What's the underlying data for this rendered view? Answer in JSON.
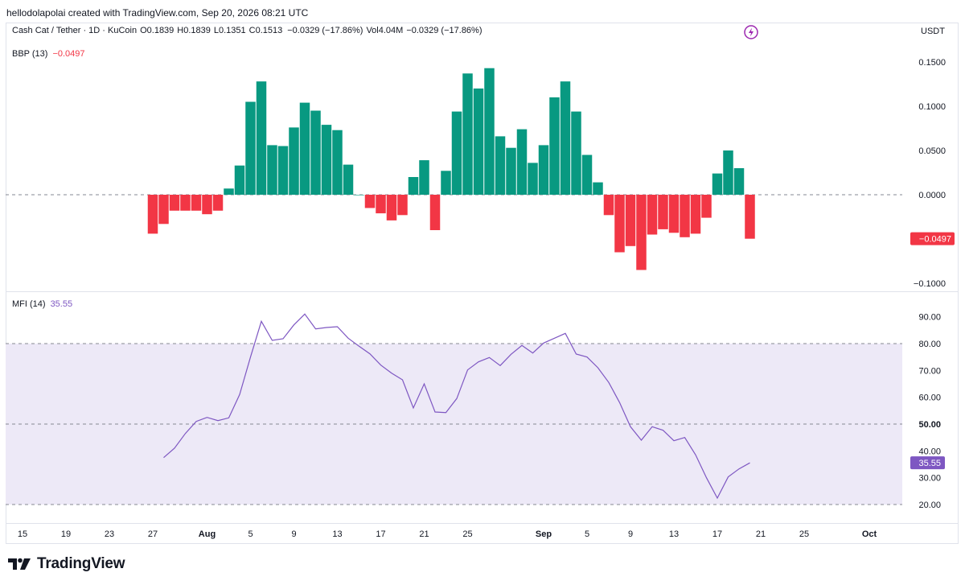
{
  "header": {
    "author_line": "hellodolapolai created with TradingView.com, Sep 20, 2026 08:21 UTC",
    "symbol": "Cash Cat / Tether · 1D · KuCoin",
    "open": "O0.1839",
    "high": "H0.1839",
    "low": "L0.1351",
    "close": "C0.1513",
    "change": "−0.0329 (−17.86%)",
    "volume": "Vol4.04M",
    "volume_change": "−0.0329 (−17.86%)",
    "currency": "USDT",
    "bolt_icon": "lightning-bolt-icon"
  },
  "brand": {
    "name": "TradingView",
    "logo_icon": "tradingview-logo-icon"
  },
  "colors": {
    "up": "#089981",
    "down": "#f23645",
    "mfi_line": "#7e57c2",
    "mfi_band": "#ede9f7",
    "grid": "#e0e3eb",
    "axis_text": "#131722"
  },
  "chart_data": [
    {
      "type": "bar",
      "title": "BBP (13)",
      "last_value_label": "−0.0497",
      "x_axis_ticks": [
        "15",
        "19",
        "23",
        "27",
        "Aug",
        "5",
        "9",
        "13",
        "17",
        "21",
        "25",
        "Sep",
        "5",
        "9",
        "13",
        "17",
        "21",
        "25",
        "Oct"
      ],
      "y_ticks": [
        "0.1500",
        "0.1000",
        "0.0500",
        "0.0000",
        "−0.1000"
      ],
      "ylim": [
        -0.1,
        0.16
      ],
      "zero_line": true,
      "categories": [
        "Jul 27",
        "Jul 28",
        "Jul 29",
        "Jul 30",
        "Jul 31",
        "Aug 1",
        "Aug 2",
        "Aug 3",
        "Aug 4",
        "Aug 5",
        "Aug 6",
        "Aug 7",
        "Aug 8",
        "Aug 9",
        "Aug 10",
        "Aug 11",
        "Aug 12",
        "Aug 13",
        "Aug 14",
        "Aug 15",
        "Aug 16",
        "Aug 17",
        "Aug 18",
        "Aug 19",
        "Aug 20",
        "Aug 21",
        "Aug 22",
        "Aug 23",
        "Aug 24",
        "Aug 25",
        "Aug 26",
        "Aug 27",
        "Aug 28",
        "Aug 29",
        "Aug 30",
        "Aug 31",
        "Sep 1",
        "Sep 2",
        "Sep 3",
        "Sep 4",
        "Sep 5",
        "Sep 6",
        "Sep 7",
        "Sep 8",
        "Sep 9",
        "Sep 10",
        "Sep 11",
        "Sep 12",
        "Sep 13",
        "Sep 14",
        "Sep 15",
        "Sep 16",
        "Sep 17",
        "Sep 18",
        "Sep 19",
        "Sep 20"
      ],
      "values": [
        -0.044,
        -0.033,
        -0.018,
        -0.018,
        -0.018,
        -0.022,
        -0.018,
        0.007,
        0.033,
        0.105,
        0.128,
        0.056,
        0.055,
        0.076,
        0.104,
        0.095,
        0.079,
        0.073,
        0.034,
        0.0,
        -0.015,
        -0.021,
        -0.029,
        -0.023,
        0.02,
        0.039,
        -0.04,
        0.027,
        0.094,
        0.137,
        0.12,
        0.143,
        0.066,
        0.053,
        0.074,
        0.036,
        0.056,
        0.11,
        0.128,
        0.094,
        0.045,
        0.014,
        -0.023,
        -0.065,
        -0.058,
        -0.085,
        -0.045,
        -0.039,
        -0.043,
        -0.048,
        -0.044,
        -0.026,
        0.024,
        0.05,
        0.03,
        -0.0497
      ]
    },
    {
      "type": "line",
      "title": "MFI (14)",
      "last_value_label": "35.55",
      "y_ticks": [
        "90.00",
        "80.00",
        "70.00",
        "60.00",
        "50.00",
        "40.00",
        "30.00",
        "20.00"
      ],
      "ylim": [
        17,
        97
      ],
      "bands": {
        "upper": 80,
        "middle": 50,
        "lower": 20
      },
      "x": [
        "Jul 28",
        "Jul 29",
        "Jul 30",
        "Jul 31",
        "Aug 1",
        "Aug 2",
        "Aug 3",
        "Aug 4",
        "Aug 5",
        "Aug 6",
        "Aug 7",
        "Aug 8",
        "Aug 9",
        "Aug 10",
        "Aug 11",
        "Aug 12",
        "Aug 13",
        "Aug 14",
        "Aug 15",
        "Aug 16",
        "Aug 17",
        "Aug 18",
        "Aug 19",
        "Aug 20",
        "Aug 21",
        "Aug 22",
        "Aug 23",
        "Aug 24",
        "Aug 25",
        "Aug 26",
        "Aug 27",
        "Aug 28",
        "Aug 29",
        "Aug 30",
        "Aug 31",
        "Sep 1",
        "Sep 2",
        "Sep 3",
        "Sep 4",
        "Sep 5",
        "Sep 6",
        "Sep 7",
        "Sep 8",
        "Sep 9",
        "Sep 10",
        "Sep 11",
        "Sep 12",
        "Sep 13",
        "Sep 14",
        "Sep 15",
        "Sep 16",
        "Sep 17",
        "Sep 18",
        "Sep 19",
        "Sep 20"
      ],
      "values": [
        37.5,
        41,
        46.5,
        51,
        52.5,
        51.3,
        52.3,
        61,
        75,
        88.3,
        81.2,
        81.8,
        87,
        91,
        85.5,
        86,
        86.3,
        82,
        79,
        76.2,
        72,
        69,
        66.5,
        56,
        65,
        54.5,
        54.3,
        59.5,
        70.2,
        73.2,
        74.8,
        71.8,
        76,
        79.3,
        76.5,
        80.2,
        82,
        83.8,
        76.1,
        75,
        71,
        65.5,
        58,
        49,
        44,
        49,
        47.7,
        43.8,
        45,
        38.5,
        30,
        22.4,
        30.3,
        33.3,
        35.55
      ]
    }
  ]
}
